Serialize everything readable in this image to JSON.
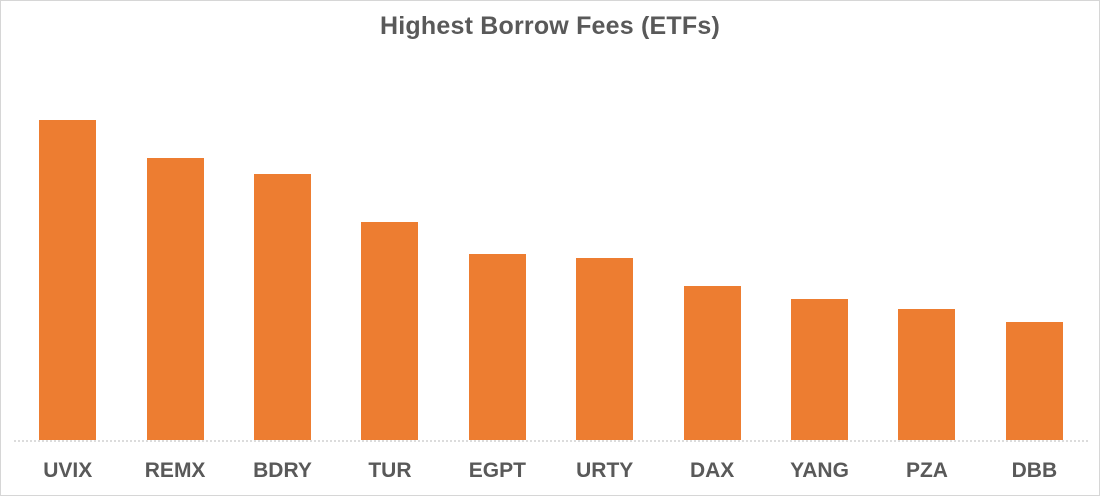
{
  "chart_data": {
    "type": "bar",
    "title": "Highest Borrow Fees (ETFs)",
    "categories": [
      "UVIX",
      "REMX",
      "BDRY",
      "TUR",
      "EGPT",
      "URTY",
      "DAX",
      "YANG",
      "PZA",
      "DBB"
    ],
    "values": [
      100,
      88,
      83,
      68,
      58,
      57,
      48,
      44,
      41,
      37
    ],
    "xlabel": "",
    "ylabel": "",
    "ylim": [
      0,
      118.4
    ],
    "value_axis_visible": false,
    "grid": false,
    "legend": false,
    "bar_color": "#ED7D31",
    "title_color": "#595959",
    "tick_label_color": "#595959",
    "axis_line_color": "#DCDCDC",
    "frame_border_color": "#D6D6D6",
    "background_color": "#FFFFFF"
  }
}
